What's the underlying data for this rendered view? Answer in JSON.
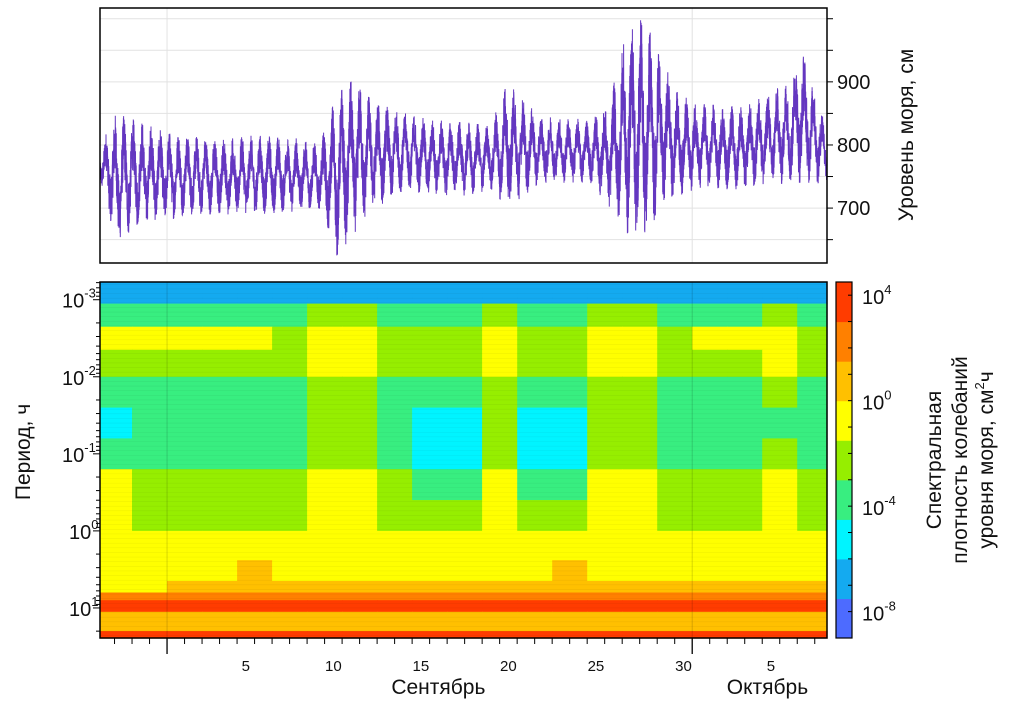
{
  "chart_data": [
    {
      "type": "line",
      "title": "",
      "ylabel": "Уровень моря, см",
      "xlabel": "",
      "x_units": "days since 1 September",
      "xlim": [
        -3.83,
        37.7
      ],
      "ylim": [
        613,
        1017
      ],
      "y_ticks": [
        {
          "value": 700,
          "label": "700"
        },
        {
          "value": 800,
          "label": "800"
        },
        {
          "value": 900,
          "label": "900"
        }
      ],
      "y_minor_ticks": [
        650,
        750,
        850,
        950,
        1000
      ],
      "color": "#6437c0",
      "grid": true,
      "envelope": {
        "x": [
          -3.8,
          -2.9,
          -1.9,
          -0.9,
          0,
          1,
          3,
          5,
          7.6,
          8.7,
          9.7,
          10.7,
          11.7,
          12.6,
          13.6,
          15,
          17.3,
          18.5,
          19.4,
          20.4,
          21.3,
          24.2,
          25.3,
          26.3,
          27.3,
          28.2,
          29.2,
          30.5,
          33,
          35.5,
          36.2,
          37.7
        ],
        "min": [
          740,
          640,
          670,
          680,
          680,
          690,
          690,
          690,
          695,
          700,
          625,
          660,
          700,
          710,
          730,
          720,
          720,
          730,
          700,
          720,
          740,
          740,
          700,
          660,
          650,
          700,
          720,
          730,
          730,
          740,
          740,
          740
        ],
        "max": [
          800,
          850,
          840,
          830,
          820,
          815,
          810,
          815,
          810,
          800,
          880,
          905,
          870,
          860,
          850,
          840,
          835,
          830,
          900,
          870,
          845,
          840,
          870,
          990,
          1000,
          940,
          880,
          865,
          860,
          900,
          960,
          830
        ]
      }
    },
    {
      "type": "heatmap",
      "title": "",
      "ylabel": "Период, ч",
      "x_units": "days since 1 September",
      "xlim": [
        -3.83,
        37.7
      ],
      "y_scale": "log",
      "y_reversed": true,
      "ylim_log10": [
        -3.23,
        1.39
      ],
      "y_ticks": [
        {
          "value": -3,
          "base": "10",
          "exp": "-3"
        },
        {
          "value": -2,
          "base": "10",
          "exp": "-2"
        },
        {
          "value": -1,
          "base": "10",
          "exp": "-1"
        },
        {
          "value": 0,
          "base": "10",
          "exp": "0"
        },
        {
          "value": 1,
          "base": "10",
          "exp": "1"
        }
      ],
      "x_tick_labels": [
        {
          "day": 4.5,
          "label": "5"
        },
        {
          "day": 9.5,
          "label": "10"
        },
        {
          "day": 14.5,
          "label": "15"
        },
        {
          "day": 19.5,
          "label": "20"
        },
        {
          "day": 24.5,
          "label": "25"
        },
        {
          "day": 29.5,
          "label": "30"
        },
        {
          "day": 34.5,
          "label": "5"
        }
      ],
      "x_major_ticks": [
        0,
        30
      ],
      "months": [
        {
          "day": 15.5,
          "label": "Сентябрь"
        },
        {
          "day": 34.3,
          "label": "Октябрь"
        }
      ],
      "col_edges": [
        -3.83,
        -2,
        0,
        2,
        4,
        6,
        8,
        10,
        12,
        14,
        16,
        18,
        20,
        22,
        24,
        26,
        28,
        30,
        32,
        34,
        36,
        37.7
      ],
      "row_edges_log10": [
        -3.23,
        -2.95,
        -2.65,
        -2.35,
        -2.0,
        -1.6,
        -1.2,
        -0.8,
        -0.4,
        0,
        0.38,
        0.65,
        0.8,
        0.9,
        1.05,
        1.3,
        1.39
      ],
      "log10_density": [
        [
          -6.5,
          -6.5,
          -6.5,
          -6.5,
          -6.5,
          -6.5,
          -6.5,
          -6.5,
          -6.5,
          -6.5,
          -6.5,
          -6.5,
          -6.5,
          -6.5,
          -6.5,
          -6.5,
          -6.5,
          -6.5,
          -6.5,
          -6.5,
          -6.5
        ],
        [
          -3.5,
          -3.5,
          -3.5,
          -3.5,
          -3.5,
          -3.5,
          -2,
          -2,
          -3.5,
          -3.5,
          -3.5,
          -2,
          -3.5,
          -3.5,
          -2,
          -2,
          -3.5,
          -3.5,
          -3.5,
          -2,
          -3.5
        ],
        [
          -1,
          -1,
          -1,
          -1.2,
          -1.5,
          -2,
          -0.8,
          -0.8,
          -2,
          -2.2,
          -2.2,
          -0.8,
          -2.2,
          -2.2,
          -0.8,
          -0.8,
          -2,
          -1.2,
          -1.5,
          -1,
          -2
        ],
        [
          -2.5,
          -2,
          -2.5,
          -2.5,
          -2.5,
          -2.5,
          -1,
          -1,
          -2.5,
          -2.5,
          -2.5,
          -1,
          -2.5,
          -2.5,
          -1,
          -1,
          -2.5,
          -2.5,
          -2.5,
          -1.5,
          -2.5
        ],
        [
          -3.8,
          -3.8,
          -3.8,
          -3.8,
          -3.8,
          -3.8,
          -2.5,
          -2.5,
          -3.8,
          -4,
          -4,
          -2.5,
          -4,
          -4,
          -2.5,
          -2.5,
          -3.8,
          -3.8,
          -3.8,
          -3,
          -3.8
        ],
        [
          -4.6,
          -3.8,
          -3.8,
          -3.8,
          -3.8,
          -3.8,
          -3,
          -3,
          -4,
          -5,
          -5,
          -3,
          -5,
          -5,
          -3,
          -3,
          -3.8,
          -3.8,
          -3.8,
          -3.5,
          -3.8
        ],
        [
          -3.6,
          -3.6,
          -3.6,
          -3.6,
          -3.6,
          -3.6,
          -2.2,
          -2.2,
          -3.8,
          -4.8,
          -4.8,
          -2.2,
          -4.8,
          -4.8,
          -2.2,
          -2.2,
          -3.6,
          -3.6,
          -3.6,
          -3,
          -3.6
        ],
        [
          -1.2,
          -2.2,
          -2.2,
          -2.2,
          -2.2,
          -2.2,
          -1,
          -1,
          -2.6,
          -3.2,
          -3.2,
          -1,
          -3.2,
          -3.2,
          -1,
          -1,
          -2.2,
          -2.2,
          -2.2,
          -1.5,
          -2.2
        ],
        [
          -1.2,
          -2.4,
          -2.4,
          -2.4,
          -2.4,
          -2.4,
          -0.8,
          -0.8,
          -2.6,
          -2.6,
          -2.6,
          -0.8,
          -2.6,
          -2.6,
          -0.8,
          -0.8,
          -2.4,
          -2.4,
          -2.4,
          -1.2,
          -2.4
        ],
        [
          -0.8,
          -0.8,
          -0.8,
          -0.8,
          -0.8,
          -0.8,
          -0.5,
          -0.5,
          -0.8,
          -0.8,
          -0.8,
          -0.5,
          -0.8,
          -0.8,
          -0.5,
          -0.5,
          -0.8,
          -0.8,
          -0.8,
          -0.5,
          -0.8
        ],
        [
          -0.6,
          -0.6,
          -0.6,
          -0.6,
          0.3,
          -0.6,
          -0.3,
          -0.3,
          -0.6,
          -0.6,
          -0.6,
          -0.3,
          -0.6,
          0.3,
          -0.3,
          -0.3,
          -0.6,
          -0.6,
          -0.6,
          -0.3,
          -0.6
        ],
        [
          -0.5,
          -0.5,
          0.5,
          0.5,
          0.5,
          0.5,
          0.5,
          0.5,
          0.5,
          0.5,
          0.5,
          0.5,
          0.5,
          0.5,
          0.5,
          0.5,
          0.5,
          0.5,
          0.5,
          0.5,
          0.5
        ],
        [
          2,
          2,
          2,
          2,
          2,
          2,
          2,
          2,
          2,
          2,
          2,
          2,
          2,
          2,
          2,
          2,
          2,
          2,
          2,
          2,
          2
        ],
        [
          3.5,
          3.5,
          3.5,
          3.5,
          3.5,
          3.5,
          3.5,
          3.5,
          3.5,
          3.5,
          3.5,
          3.5,
          3.5,
          3.5,
          3.5,
          3.5,
          3.5,
          3.5,
          3.5,
          3.5,
          3.5
        ],
        [
          0.8,
          0.8,
          0.8,
          0.8,
          0.8,
          0.8,
          0.8,
          0.8,
          0.8,
          0.8,
          0.8,
          0.8,
          0.8,
          0.8,
          0.8,
          0.8,
          0.8,
          0.8,
          0.8,
          0.8,
          0.8
        ],
        [
          3.2,
          3.2,
          3.2,
          3.2,
          3.2,
          3.2,
          3.2,
          3.2,
          3.2,
          3.2,
          3.2,
          3.2,
          3.2,
          3.2,
          3.2,
          3.2,
          3.2,
          3.2,
          3.2,
          3.2,
          3.2
        ]
      ],
      "colorbar": {
        "range_log10": [
          -9,
          4.5
        ],
        "band_colors": [
          "#4d6bff",
          "#14aaf0",
          "#00f4ff",
          "#38ee80",
          "#96ee00",
          "#ffff00",
          "#ffc000",
          "#ff8000",
          "#ff3c00"
        ],
        "ticks": [
          {
            "value": 4,
            "base": "10",
            "exp": "4"
          },
          {
            "value": 0,
            "base": "10",
            "exp": "0"
          },
          {
            "value": -4,
            "base": "10",
            "exp": "-4"
          },
          {
            "value": -8,
            "base": "10",
            "exp": "-8"
          }
        ],
        "label_line1": "Спектральная",
        "label_line2": "плотность колебаний",
        "label_line3_pre": "уровня моря, см",
        "label_line3_sup": "2",
        "label_line3_post": "ч"
      }
    }
  ]
}
